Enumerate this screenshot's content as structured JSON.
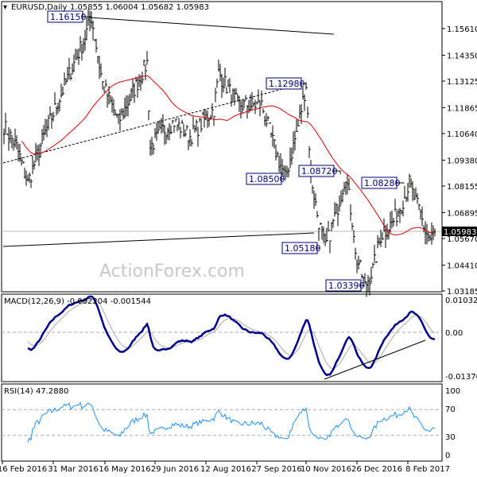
{
  "header": {
    "symbol": "EURUSD,Daily",
    "ohlc": "1.05855 1.06004 1.05682 1.05983"
  },
  "watermark": "ActionForex.com",
  "macd": {
    "title": "MACD(12,26,9) -0.002204 -0.001544",
    "ticks": [
      "0.010325",
      "0.00",
      "-0.013709"
    ]
  },
  "rsi": {
    "title": "RSI(14) 47.2880",
    "ticks": [
      "100",
      "70",
      "30",
      "0"
    ]
  },
  "chart_data": {
    "type": "line",
    "title": "EURUSD,Daily",
    "price_ticks": [
      "1.15610",
      "1.14350",
      "1.13125",
      "1.11865",
      "1.10640",
      "1.09380",
      "1.08155",
      "1.06895",
      "1.05670",
      "1.04410",
      "1.03185"
    ],
    "ylim": [
      1.03185,
      1.1561
    ],
    "current_price": "1.05983",
    "x_labels": [
      "16 Feb 2016",
      "31 Mar 2016",
      "16 May 2016",
      "29 Jun 2016",
      "12 Aug 2016",
      "27 Sep 2016",
      "10 Nov 2016",
      "26 Dec 2016",
      "8 Feb 2017"
    ],
    "price_keypoints": [
      [
        0,
        1.11
      ],
      [
        8,
        1.1
      ],
      [
        15,
        1.083
      ],
      [
        25,
        1.105
      ],
      [
        43,
        1.138
      ],
      [
        50,
        1.15
      ],
      [
        55,
        1.1615
      ],
      [
        62,
        1.13
      ],
      [
        72,
        1.112
      ],
      [
        90,
        1.14
      ],
      [
        92,
        1.1
      ],
      [
        100,
        1.108
      ],
      [
        107,
        1.112
      ],
      [
        117,
        1.105
      ],
      [
        132,
        1.118
      ],
      [
        135,
        1.135
      ],
      [
        147,
        1.12
      ],
      [
        162,
        1.12
      ],
      [
        170,
        1.1
      ],
      [
        177,
        1.085
      ],
      [
        185,
        1.11
      ],
      [
        190,
        1.1298
      ],
      [
        193,
        1.087
      ],
      [
        197,
        1.068
      ],
      [
        202,
        1.0518
      ],
      [
        210,
        1.072
      ],
      [
        215,
        1.0872
      ],
      [
        220,
        1.06
      ],
      [
        223,
        1.045
      ],
      [
        220,
        1.05
      ],
      [
        227,
        1.0339
      ],
      [
        232,
        1.042
      ],
      [
        237,
        1.058
      ],
      [
        245,
        1.065
      ],
      [
        250,
        1.073
      ],
      [
        255,
        1.0828
      ],
      [
        257,
        1.078
      ],
      [
        262,
        1.068
      ],
      [
        265,
        1.06
      ],
      [
        268,
        1.056
      ],
      [
        271,
        1.0598
      ]
    ],
    "annotations": [
      "1.16150",
      "1.12980",
      "1.08500",
      "1.08720",
      "1.08280",
      "1.05180",
      "1.03390"
    ],
    "ma_period": 50,
    "rsi_levels": [
      70,
      30
    ]
  }
}
